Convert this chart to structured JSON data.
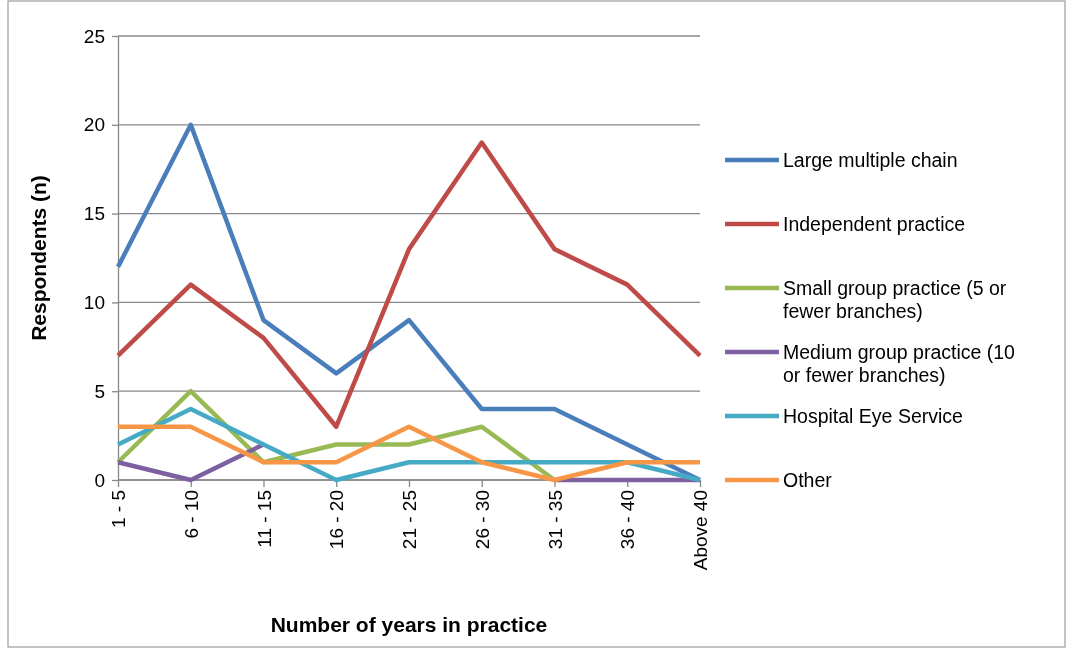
{
  "chart_data": {
    "type": "line",
    "xlabel": "Number of years in practice",
    "ylabel": "Respondents (n)",
    "categories": [
      "1 - 5",
      "6 - 10",
      "11 - 15",
      "16 - 20",
      "21 - 25",
      "26 - 30",
      "31 - 35",
      "36 - 40",
      "Above 40"
    ],
    "ylim": [
      0,
      25
    ],
    "yticks": [
      0,
      5,
      10,
      15,
      20,
      25
    ],
    "grid": "y",
    "legend": "right",
    "marker": "none",
    "series": [
      {
        "name": "Large multiple chain",
        "color": "#4a7ebb",
        "values": [
          12,
          20,
          9,
          6,
          9,
          4,
          4,
          2,
          0
        ]
      },
      {
        "name": "Independent practice",
        "color": "#be4b48",
        "values": [
          7,
          11,
          8,
          3,
          13,
          19,
          13,
          11,
          7
        ]
      },
      {
        "name": "Small group practice (5 or fewer branches)",
        "color": "#98b954",
        "values": [
          1,
          5,
          1,
          2,
          2,
          3,
          0,
          null,
          null
        ]
      },
      {
        "name": "Medium group practice (10 or fewer branches)",
        "color": "#7d60a0",
        "values": [
          1,
          0,
          2,
          null,
          null,
          null,
          0,
          0,
          0
        ]
      },
      {
        "name": "Hospital Eye Service",
        "color": "#46aac5",
        "values": [
          2,
          4,
          2,
          0,
          1,
          1,
          1,
          1,
          0
        ]
      },
      {
        "name": "Other",
        "color": "#f79646",
        "values": [
          3,
          3,
          1,
          1,
          3,
          1,
          0,
          1,
          1
        ]
      }
    ]
  }
}
